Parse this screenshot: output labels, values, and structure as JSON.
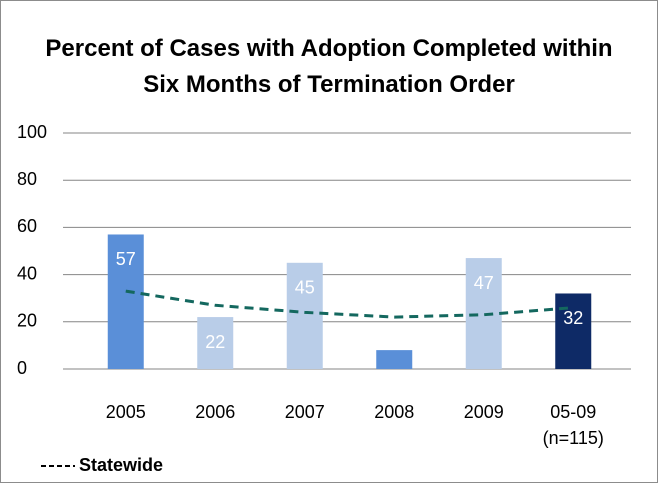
{
  "chart_data": {
    "type": "bar",
    "title": "Percent of Cases with Adoption Completed within Six Months of Termination Order",
    "categories": [
      "2005",
      "2006",
      "2007",
      "2008",
      "2009",
      "05-09\n(n=115)"
    ],
    "series": [
      {
        "name": null,
        "type": "bar",
        "values": [
          57,
          22,
          45,
          8,
          47,
          32
        ],
        "colors": [
          "#5a8fd8",
          "#b9cde8",
          "#b9cde8",
          "#5a8fd8",
          "#b9cde8",
          "#0e2a66"
        ]
      },
      {
        "name": "Statewide",
        "type": "line",
        "color": "#14685f",
        "values": [
          33,
          27,
          24,
          22,
          23,
          26
        ]
      }
    ],
    "ylim": [
      0,
      100
    ],
    "yticks": [
      0,
      20,
      40,
      60,
      80,
      100
    ],
    "grid": true,
    "legend": "bottom-left"
  }
}
